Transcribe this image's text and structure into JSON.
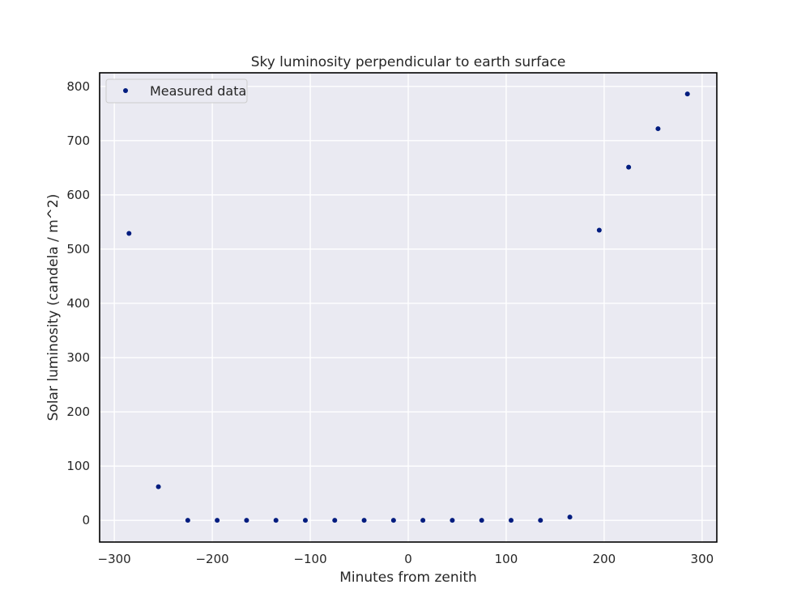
{
  "chart_data": {
    "type": "scatter",
    "title": "Sky luminosity perpendicular to earth surface",
    "xlabel": "Minutes from zenith",
    "ylabel": "Solar luminosity (candela / m^2)",
    "xlim": [
      -315,
      315
    ],
    "ylim": [
      -40,
      825
    ],
    "xticks": [
      -300,
      -200,
      -100,
      0,
      100,
      200,
      300
    ],
    "xtick_labels": [
      "−300",
      "−200",
      "−100",
      "0",
      "100",
      "200",
      "300"
    ],
    "yticks": [
      0,
      100,
      200,
      300,
      400,
      500,
      600,
      700,
      800
    ],
    "ytick_labels": [
      "0",
      "100",
      "200",
      "300",
      "400",
      "500",
      "600",
      "700",
      "800"
    ],
    "grid": true,
    "legend": {
      "placement": "upper-left",
      "entries": [
        "Measured data"
      ]
    },
    "series": [
      {
        "name": "Measured data",
        "color": "#001c7f",
        "x": [
          -285,
          -255,
          -225,
          -195,
          -165,
          -135,
          -105,
          -75,
          -45,
          -15,
          15,
          45,
          75,
          105,
          135,
          165,
          195,
          225,
          255,
          285
        ],
        "y": [
          529,
          62,
          0,
          0,
          0,
          0,
          0,
          0,
          0,
          0,
          0,
          0,
          0,
          0,
          0,
          6,
          535,
          651,
          722,
          786
        ]
      }
    ]
  },
  "colors": {
    "plot_background": "#eaeaf2",
    "grid": "#ffffff",
    "frame": "#000000",
    "marker": "#001c7f"
  }
}
